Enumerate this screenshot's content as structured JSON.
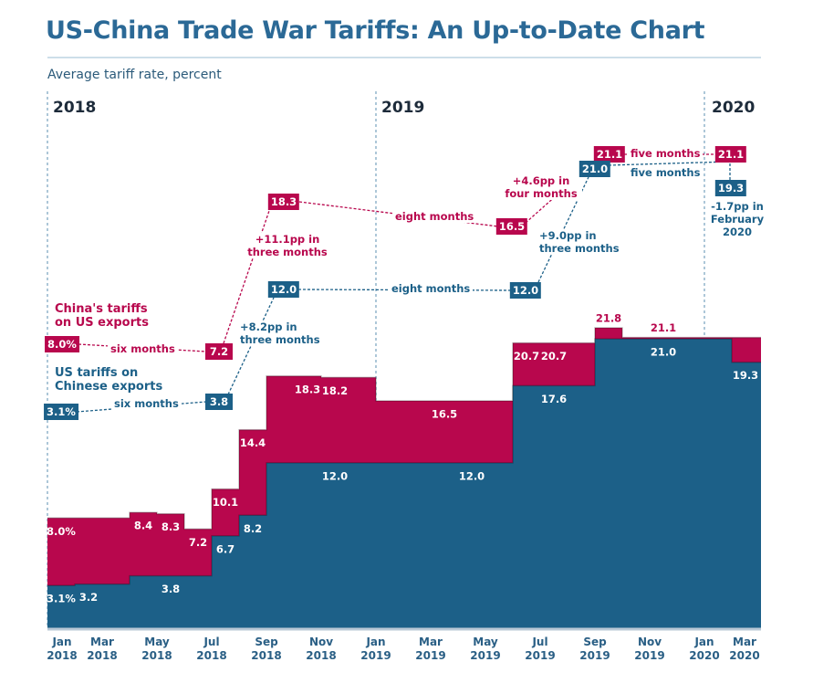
{
  "title": "US-China Trade War Tariffs: An Up-to-Date Chart",
  "subtitle": "Average tariff rate, percent",
  "years": [
    "2018",
    "2019",
    "2020"
  ],
  "chart_data": {
    "type": "step-area",
    "x": [
      "Jan 2018",
      null,
      "Mar 2018",
      null,
      "May 2018",
      null,
      "Jul 2018",
      null,
      "Sep 2018",
      null,
      "Nov 2018",
      null,
      "Jan 2019",
      null,
      "Mar 2019",
      null,
      "May 2019",
      null,
      "Jul 2019",
      null,
      "Sep 2019",
      null,
      "Nov 2019",
      null,
      "Jan 2020",
      null,
      "Mar 2020"
    ],
    "ylim": [
      0,
      22
    ],
    "series": [
      {
        "name": "China's tariffs on US exports",
        "color": "#b8074d",
        "values": [
          8.0,
          8.0,
          8.0,
          8.4,
          8.3,
          7.2,
          10.1,
          14.4,
          18.3,
          18.3,
          18.2,
          18.2,
          16.5,
          16.5,
          16.5,
          16.5,
          16.5,
          20.7,
          20.7,
          20.7,
          21.8,
          21.1,
          21.1,
          21.1,
          21.1,
          21.1,
          21.1
        ],
        "value_labels": [
          "8.0%",
          null,
          null,
          "8.4",
          "8.3",
          "7.2",
          "10.1",
          "14.4",
          null,
          "18.3",
          "18.2",
          null,
          null,
          null,
          "16.5",
          null,
          null,
          "20.7",
          "20.7",
          null,
          "21.8",
          null,
          "21.1",
          null,
          null,
          null,
          null
        ]
      },
      {
        "name": "US tariffs on Chinese exports",
        "color": "#1c6088",
        "values": [
          3.1,
          3.2,
          3.2,
          3.8,
          3.8,
          3.8,
          6.7,
          8.2,
          12.0,
          12.0,
          12.0,
          12.0,
          12.0,
          12.0,
          12.0,
          12.0,
          12.0,
          17.6,
          17.6,
          17.6,
          21.0,
          21.0,
          21.0,
          21.0,
          21.0,
          19.3,
          19.3
        ],
        "value_labels": [
          "3.1%",
          "3.2",
          null,
          null,
          "3.8",
          null,
          "6.7",
          "8.2",
          null,
          null,
          "12.0",
          null,
          null,
          null,
          null,
          "12.0",
          null,
          null,
          "17.6",
          null,
          null,
          null,
          "21.0",
          null,
          null,
          "19.3",
          null
        ]
      }
    ]
  },
  "annotations": {
    "china": {
      "boxes": [
        "8.0%",
        "7.2",
        "18.3",
        "16.5",
        "21.1",
        "21.1"
      ],
      "notes": [
        "six months",
        "+11.1pp in three months",
        "eight months",
        "+4.6pp in four months",
        "five months"
      ]
    },
    "us": {
      "boxes": [
        "3.1%",
        "3.8",
        "12.0",
        "12.0",
        "21.0",
        "19.3"
      ],
      "notes": [
        "six months",
        "+8.2pp in three months",
        "eight months",
        "+9.0pp in three months",
        "five months",
        "-1.7pp in February 2020"
      ]
    }
  }
}
